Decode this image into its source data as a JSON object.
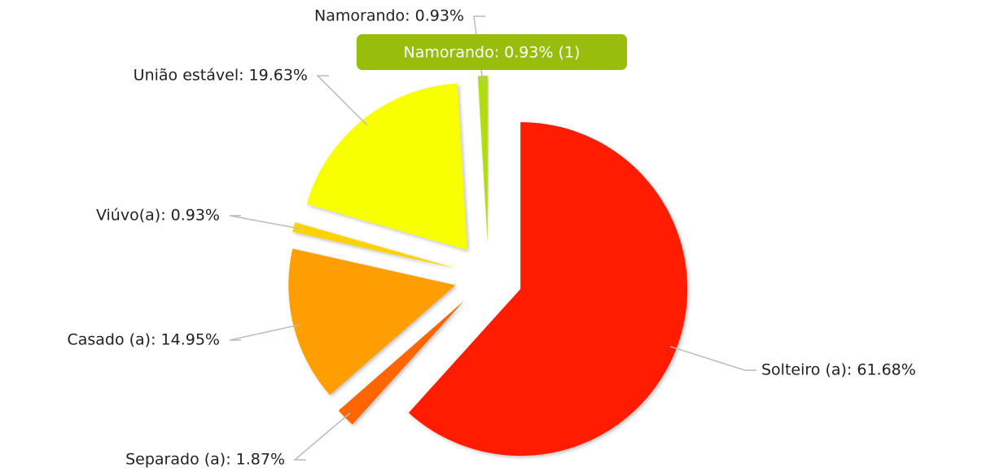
{
  "chart_data": {
    "type": "pie",
    "value_labels": [
      "Solteiro (a): 61.68%",
      "Separado (a): 1.87%",
      "Casado (a): 14.95%",
      "Viúvo(a): 0.93%",
      "União estável: 19.63%",
      "Namorando: 0.93%"
    ],
    "values": [
      61.68,
      1.87,
      14.95,
      0.93,
      19.63,
      0.93
    ],
    "colors": [
      "#ff1a00",
      "#ff6600",
      "#ff9e01",
      "#fcd202",
      "#f8ff01",
      "#b0de09"
    ],
    "tooltip": "Namorando: 0.93% (1)"
  }
}
